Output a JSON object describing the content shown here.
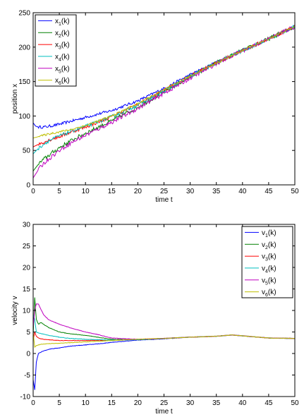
{
  "chart_data": [
    {
      "type": "line",
      "xlabel": "time t",
      "ylabel": "position x",
      "xlim": [
        0,
        50
      ],
      "ylim": [
        0,
        250
      ],
      "xticks": [
        0,
        5,
        10,
        15,
        20,
        25,
        30,
        35,
        40,
        45,
        50
      ],
      "yticks": [
        0,
        50,
        100,
        150,
        200,
        250
      ],
      "grid": false,
      "legend_position": "top-left",
      "noise": [
        2.0,
        3.0,
        2.5,
        2.5,
        3.0,
        1.5
      ],
      "series": [
        {
          "name": "x",
          "sub": "1",
          "suffix": "(k)",
          "color": "#0000ff",
          "x": [
            0,
            0.5,
            1,
            2,
            3,
            5,
            7,
            10,
            15,
            20,
            25,
            30,
            35,
            40,
            45,
            50
          ],
          "y": [
            90,
            85,
            84,
            84,
            85,
            88,
            92,
            98,
            108,
            122,
            140,
            160,
            178,
            195,
            212,
            230
          ]
        },
        {
          "name": "x",
          "sub": "2",
          "suffix": "(k)",
          "color": "#008000",
          "x": [
            0,
            0.5,
            1,
            2,
            3,
            5,
            7,
            10,
            15,
            20,
            25,
            30,
            35,
            40,
            45,
            50
          ],
          "y": [
            20,
            25,
            30,
            37,
            43,
            54,
            63,
            75,
            93,
            113,
            135,
            157,
            177,
            195,
            212,
            230
          ]
        },
        {
          "name": "x",
          "sub": "3",
          "suffix": "(k)",
          "color": "#ff0000",
          "x": [
            0,
            0.5,
            1,
            2,
            3,
            5,
            7,
            10,
            15,
            20,
            25,
            30,
            35,
            40,
            45,
            50
          ],
          "y": [
            55,
            57,
            59,
            62,
            65,
            70,
            76,
            84,
            99,
            117,
            137,
            158,
            177,
            195,
            212,
            230
          ]
        },
        {
          "name": "x",
          "sub": "4",
          "suffix": "(k)",
          "color": "#00bfbf",
          "x": [
            0,
            0.5,
            1,
            2,
            3,
            5,
            7,
            10,
            15,
            20,
            25,
            30,
            35,
            40,
            45,
            50
          ],
          "y": [
            45,
            49,
            53,
            59,
            64,
            71,
            77,
            85,
            99,
            116,
            136,
            157,
            177,
            195,
            212,
            230
          ]
        },
        {
          "name": "x",
          "sub": "5",
          "suffix": "(k)",
          "color": "#bf00bf",
          "x": [
            0,
            0.5,
            1,
            2,
            3,
            5,
            7,
            10,
            15,
            20,
            25,
            30,
            35,
            40,
            45,
            50
          ],
          "y": [
            10,
            16,
            22,
            31,
            38,
            50,
            60,
            72,
            91,
            111,
            133,
            155,
            176,
            195,
            212,
            230
          ]
        },
        {
          "name": "x",
          "sub": "6",
          "suffix": "(k)",
          "color": "#bfbf00",
          "x": [
            0,
            1,
            2,
            3,
            5,
            7,
            10,
            15,
            20,
            25,
            30,
            35,
            40,
            45,
            50
          ],
          "y": [
            68,
            70,
            72,
            74,
            77,
            80,
            86,
            100,
            118,
            138,
            158,
            177,
            195,
            212,
            230
          ]
        }
      ]
    },
    {
      "type": "line",
      "xlabel": "time t",
      "ylabel": "velocity v",
      "xlim": [
        0,
        50
      ],
      "ylim": [
        -10,
        30
      ],
      "xticks": [
        0,
        5,
        10,
        15,
        20,
        25,
        30,
        35,
        40,
        45,
        50
      ],
      "yticks": [
        -10,
        -5,
        0,
        5,
        10,
        15,
        20,
        25,
        30
      ],
      "grid": false,
      "legend_position": "top-right",
      "noise": [
        0.05,
        0.05,
        0.05,
        0.05,
        0.05,
        0.05
      ],
      "series": [
        {
          "name": "v",
          "sub": "1",
          "suffix": "(k)",
          "color": "#0000ff",
          "x": [
            0,
            0.3,
            0.6,
            1,
            1.5,
            2,
            3,
            5,
            7,
            10,
            13,
            15,
            18,
            20,
            25,
            30,
            35,
            38,
            40,
            45,
            50
          ],
          "y": [
            -6,
            -8.5,
            -2,
            0,
            0.3,
            0.6,
            1.0,
            1.3,
            1.7,
            2.0,
            2.3,
            2.6,
            2.9,
            3.1,
            3.4,
            3.8,
            4.0,
            4.3,
            4.1,
            3.6,
            3.5
          ]
        },
        {
          "name": "v",
          "sub": "2",
          "suffix": "(k)",
          "color": "#008000",
          "x": [
            0,
            0.3,
            0.6,
            1,
            1.5,
            2,
            3,
            5,
            7,
            10,
            15,
            20,
            25,
            30,
            35,
            38,
            40,
            45,
            50
          ],
          "y": [
            4,
            13,
            8,
            6.8,
            7.2,
            6.8,
            6.0,
            5.0,
            4.6,
            4.2,
            3.3,
            3.2,
            3.5,
            3.8,
            4.0,
            4.3,
            4.1,
            3.6,
            3.5
          ]
        },
        {
          "name": "v",
          "sub": "3",
          "suffix": "(k)",
          "color": "#ff0000",
          "x": [
            0,
            0.3,
            0.6,
            1,
            1.5,
            2,
            3,
            5,
            7,
            10,
            15,
            20,
            25,
            30,
            35,
            38,
            40,
            45,
            50
          ],
          "y": [
            3,
            5,
            4,
            3.6,
            3.4,
            3.3,
            3.2,
            3.0,
            3.0,
            3.0,
            3.1,
            3.3,
            3.5,
            3.8,
            4.0,
            4.3,
            4.1,
            3.6,
            3.5
          ]
        },
        {
          "name": "v",
          "sub": "4",
          "suffix": "(k)",
          "color": "#00bfbf",
          "x": [
            0,
            0.3,
            0.6,
            1,
            1.5,
            2,
            3,
            5,
            7,
            10,
            15,
            20,
            25,
            30,
            35,
            38,
            40,
            45,
            50
          ],
          "y": [
            9,
            8,
            5,
            4.8,
            4.6,
            4.5,
            4.2,
            3.8,
            3.5,
            3.3,
            3.1,
            3.2,
            3.5,
            3.8,
            4.0,
            4.3,
            4.1,
            3.6,
            3.5
          ]
        },
        {
          "name": "v",
          "sub": "5",
          "suffix": "(k)",
          "color": "#bf00bf",
          "x": [
            0,
            0.3,
            0.6,
            1,
            1.5,
            2,
            3,
            5,
            7,
            10,
            12,
            15,
            18,
            20,
            25,
            30,
            35,
            38,
            40,
            45,
            50
          ],
          "y": [
            6,
            10,
            11.5,
            11.5,
            10.2,
            9.0,
            7.8,
            6.8,
            6.0,
            5.0,
            4.5,
            3.6,
            3.4,
            3.3,
            3.5,
            3.8,
            4.0,
            4.3,
            4.1,
            3.6,
            3.5
          ]
        },
        {
          "name": "v",
          "sub": "6",
          "suffix": "(k)",
          "color": "#bfbf00",
          "x": [
            0,
            0.3,
            0.6,
            1,
            1.5,
            2,
            3,
            5,
            7,
            10,
            15,
            20,
            25,
            30,
            35,
            38,
            40,
            45,
            50
          ],
          "y": [
            5,
            1.5,
            1.8,
            2.0,
            2.1,
            2.2,
            2.3,
            2.4,
            2.5,
            2.7,
            3.0,
            3.3,
            3.5,
            3.8,
            4.0,
            4.3,
            4.1,
            3.6,
            3.5
          ]
        }
      ]
    }
  ]
}
